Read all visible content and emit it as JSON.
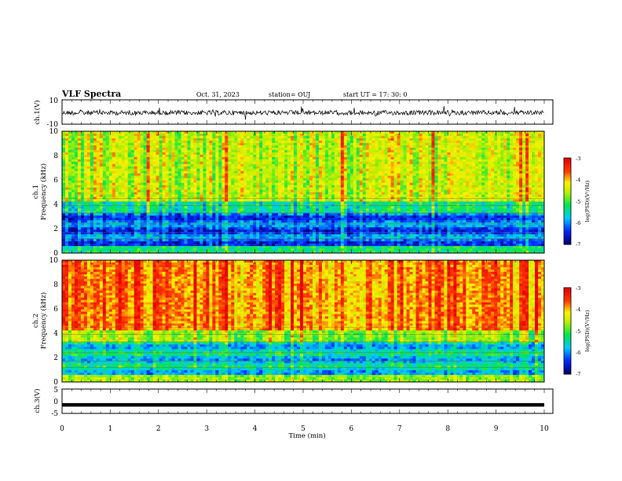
{
  "header": {
    "title": "VLF Spectra",
    "date": "Oct. 31, 2023",
    "station": "station= OUJ",
    "start": "start  UT =  17: 30: 0"
  },
  "chart_data": [
    {
      "type": "line",
      "panel": "ch1-waveform",
      "ylabel": "ch.1(V)",
      "ylim": [
        -10,
        10
      ],
      "yticks": [
        "10",
        "-10"
      ],
      "xlim": [
        0,
        10
      ]
    },
    {
      "type": "heatmap",
      "panel": "ch1-spectrogram",
      "ylabel_line1": "ch.1",
      "ylabel_line2": "Frequency (kHz)",
      "ylim": [
        0,
        10
      ],
      "yticks": [
        "0",
        "2",
        "4",
        "6",
        "8",
        "10"
      ],
      "xlim": [
        0,
        10
      ],
      "colorbar": {
        "label": "log(PSD)(V²/Hz)",
        "range": [
          -7,
          -3
        ],
        "ticks": [
          "-3",
          "-4",
          "-5",
          "-6",
          "-7"
        ]
      },
      "dominant_level_high_freq": -4.5,
      "dominant_level_low_freq": -6.2
    },
    {
      "type": "heatmap",
      "panel": "ch2-spectrogram",
      "ylabel_line1": "ch.2",
      "ylabel_line2": "Frequency (kHz)",
      "ylim": [
        0,
        10
      ],
      "yticks": [
        "0",
        "2",
        "4",
        "6",
        "8",
        "10"
      ],
      "xlim": [
        0,
        10
      ],
      "colorbar": {
        "label": "log(PSD)(V²/Hz)",
        "range": [
          -7,
          -3
        ],
        "ticks": [
          "-3",
          "-4",
          "-5",
          "-6",
          "-7"
        ]
      },
      "dominant_level_high_freq": -3.8,
      "dominant_level_low_freq": -5.6
    },
    {
      "type": "line",
      "panel": "ch3-waveform",
      "ylabel": "ch.3(V)",
      "ylim": [
        -5,
        5
      ],
      "yticks": [
        "5",
        "0",
        "-5"
      ],
      "xlim": [
        0,
        10
      ],
      "xlabel": "Time  (min)",
      "xticks": [
        "0",
        "1",
        "2",
        "3",
        "4",
        "5",
        "6",
        "7",
        "8",
        "9",
        "10"
      ],
      "constant_value": -1.5
    }
  ],
  "colors": {
    "low": "#00008b",
    "mid_low": "#00bfff",
    "mid": "#00e000",
    "mid_high": "#ffff00",
    "high": "#ff0000",
    "highest": "#ffffff"
  }
}
